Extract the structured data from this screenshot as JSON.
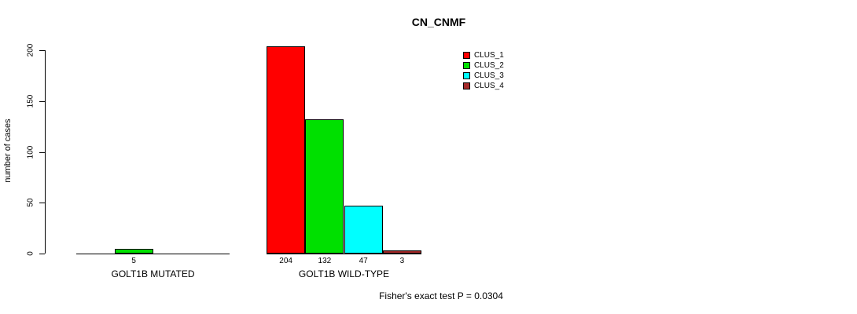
{
  "chart_data": {
    "type": "bar",
    "title": "CN_CNMF",
    "ylabel": "number of cases",
    "xlabel": "",
    "ylim": [
      0,
      200
    ],
    "yticks": [
      0,
      50,
      100,
      150,
      200
    ],
    "grid": false,
    "legend_position": "top-right-inside",
    "background_color": "#ffffff",
    "axis_color": "#000000",
    "legend": [
      {
        "label": "CLUS_1",
        "color": "#ff0000"
      },
      {
        "label": "CLUS_2",
        "color": "#00e000"
      },
      {
        "label": "CLUS_3",
        "color": "#00ffff"
      },
      {
        "label": "CLUS_4",
        "color": "#a52a2a"
      }
    ],
    "categories": [
      "GOLT1B MUTATED",
      "GOLT1B WILD-TYPE"
    ],
    "series": [
      {
        "name": "CLUS_1",
        "values": [
          0,
          204
        ]
      },
      {
        "name": "CLUS_2",
        "values": [
          5,
          132
        ]
      },
      {
        "name": "CLUS_3",
        "values": [
          0,
          47
        ]
      },
      {
        "name": "CLUS_4",
        "values": [
          0,
          3
        ]
      }
    ],
    "bar_value_labels": [
      [
        "",
        "5",
        "",
        ""
      ],
      [
        "204",
        "132",
        "47",
        "3"
      ]
    ],
    "footnote": "Fisher's exact test P = 0.0304"
  }
}
